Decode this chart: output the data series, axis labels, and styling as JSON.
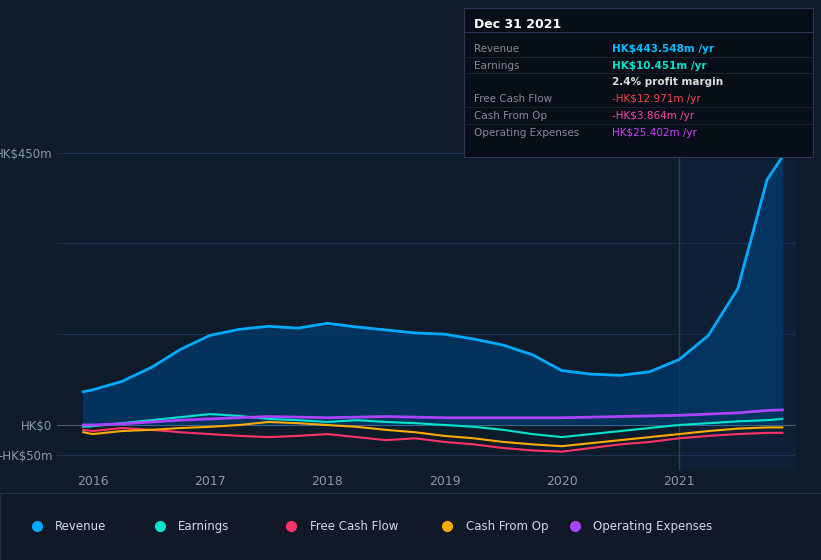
{
  "bg_color": "#0d1b2a",
  "chart_bg": "#0d1b2a",
  "ylim": [
    -75,
    480
  ],
  "yticks": [
    -50,
    0,
    150,
    300,
    450
  ],
  "ytick_labels": [
    "-HK$50m",
    "HK$0",
    "",
    "",
    "HK$450m"
  ],
  "xticks": [
    2016,
    2017,
    2018,
    2019,
    2020,
    2021
  ],
  "xlim": [
    2015.7,
    2022.0
  ],
  "grid_color": "#1e3050",
  "text_color": "#8899aa",
  "title_text": "Dec 31 2021",
  "infobox": {
    "bg": "#080e18",
    "border": "#333355",
    "title": "Dec 31 2021",
    "rows": [
      {
        "label": "Revenue",
        "value": "HK$443.548m /yr",
        "value_color": "#00bfff"
      },
      {
        "label": "Earnings",
        "value": "HK$10.451m /yr",
        "value_color": "#00e5cc"
      },
      {
        "label": "",
        "value": "2.4% profit margin",
        "value_color": "#dddddd"
      },
      {
        "label": "Free Cash Flow",
        "value": "-HK$12.971m /yr",
        "value_color": "#ff4444"
      },
      {
        "label": "Cash From Op",
        "value": "-HK$3.864m /yr",
        "value_color": "#ff44aa"
      },
      {
        "label": "Operating Expenses",
        "value": "HK$25.402m /yr",
        "value_color": "#cc44ff"
      }
    ]
  },
  "series": {
    "Revenue": {
      "color": "#00aaff",
      "fill_color": "#003a6e",
      "lw": 2.0,
      "x": [
        2015.92,
        2016.0,
        2016.25,
        2016.5,
        2016.75,
        2017.0,
        2017.25,
        2017.5,
        2017.75,
        2018.0,
        2018.25,
        2018.5,
        2018.75,
        2019.0,
        2019.25,
        2019.5,
        2019.75,
        2020.0,
        2020.25,
        2020.5,
        2020.75,
        2021.0,
        2021.25,
        2021.5,
        2021.75,
        2021.88
      ],
      "y": [
        55,
        58,
        72,
        95,
        125,
        148,
        158,
        163,
        160,
        168,
        162,
        157,
        152,
        150,
        142,
        132,
        116,
        90,
        84,
        82,
        88,
        108,
        148,
        225,
        405,
        443
      ]
    },
    "Earnings": {
      "color": "#00e5cc",
      "lw": 1.5,
      "x": [
        2015.92,
        2016.0,
        2016.25,
        2016.5,
        2016.75,
        2017.0,
        2017.25,
        2017.5,
        2017.75,
        2018.0,
        2018.25,
        2018.5,
        2018.75,
        2019.0,
        2019.25,
        2019.5,
        2019.75,
        2020.0,
        2020.25,
        2020.5,
        2020.75,
        2021.0,
        2021.25,
        2021.5,
        2021.75,
        2021.88
      ],
      "y": [
        -3,
        -2,
        3,
        8,
        13,
        18,
        15,
        10,
        8,
        5,
        8,
        5,
        3,
        0,
        -3,
        -8,
        -15,
        -20,
        -15,
        -10,
        -5,
        0,
        3,
        6,
        8,
        10
      ]
    },
    "Free Cash Flow": {
      "color": "#ff3366",
      "lw": 1.5,
      "x": [
        2015.92,
        2016.0,
        2016.25,
        2016.5,
        2016.75,
        2017.0,
        2017.25,
        2017.5,
        2017.75,
        2018.0,
        2018.25,
        2018.5,
        2018.75,
        2019.0,
        2019.25,
        2019.5,
        2019.75,
        2020.0,
        2020.25,
        2020.5,
        2020.75,
        2021.0,
        2021.25,
        2021.5,
        2021.75,
        2021.88
      ],
      "y": [
        -8,
        -10,
        -5,
        -8,
        -12,
        -15,
        -18,
        -20,
        -18,
        -15,
        -20,
        -25,
        -22,
        -28,
        -32,
        -38,
        -42,
        -44,
        -38,
        -32,
        -28,
        -22,
        -18,
        -15,
        -13,
        -13
      ]
    },
    "Cash From Op": {
      "color": "#ffaa00",
      "lw": 1.5,
      "x": [
        2015.92,
        2016.0,
        2016.25,
        2016.5,
        2016.75,
        2017.0,
        2017.25,
        2017.5,
        2017.75,
        2018.0,
        2018.25,
        2018.5,
        2018.75,
        2019.0,
        2019.25,
        2019.5,
        2019.75,
        2020.0,
        2020.25,
        2020.5,
        2020.75,
        2021.0,
        2021.25,
        2021.5,
        2021.75,
        2021.88
      ],
      "y": [
        -12,
        -15,
        -10,
        -8,
        -5,
        -3,
        0,
        5,
        3,
        0,
        -3,
        -8,
        -12,
        -18,
        -22,
        -28,
        -32,
        -35,
        -30,
        -25,
        -20,
        -15,
        -10,
        -6,
        -4,
        -4
      ]
    },
    "Operating Expenses": {
      "color": "#aa44ff",
      "lw": 2.0,
      "x": [
        2015.92,
        2016.0,
        2016.25,
        2016.5,
        2016.75,
        2017.0,
        2017.25,
        2017.5,
        2017.75,
        2018.0,
        2018.25,
        2018.5,
        2018.75,
        2019.0,
        2019.25,
        2019.5,
        2019.75,
        2020.0,
        2020.25,
        2020.5,
        2020.75,
        2021.0,
        2021.25,
        2021.5,
        2021.75,
        2021.88
      ],
      "y": [
        0,
        0,
        2,
        5,
        8,
        10,
        12,
        14,
        13,
        12,
        13,
        14,
        13,
        12,
        12,
        12,
        12,
        12,
        13,
        14,
        15,
        16,
        18,
        20,
        24,
        25
      ]
    }
  },
  "vertical_line_x": 2021.0,
  "legend": [
    {
      "label": "Revenue",
      "color": "#00aaff"
    },
    {
      "label": "Earnings",
      "color": "#00e5cc"
    },
    {
      "label": "Free Cash Flow",
      "color": "#ff3366"
    },
    {
      "label": "Cash From Op",
      "color": "#ffaa00"
    },
    {
      "label": "Operating Expenses",
      "color": "#aa44ff"
    }
  ]
}
